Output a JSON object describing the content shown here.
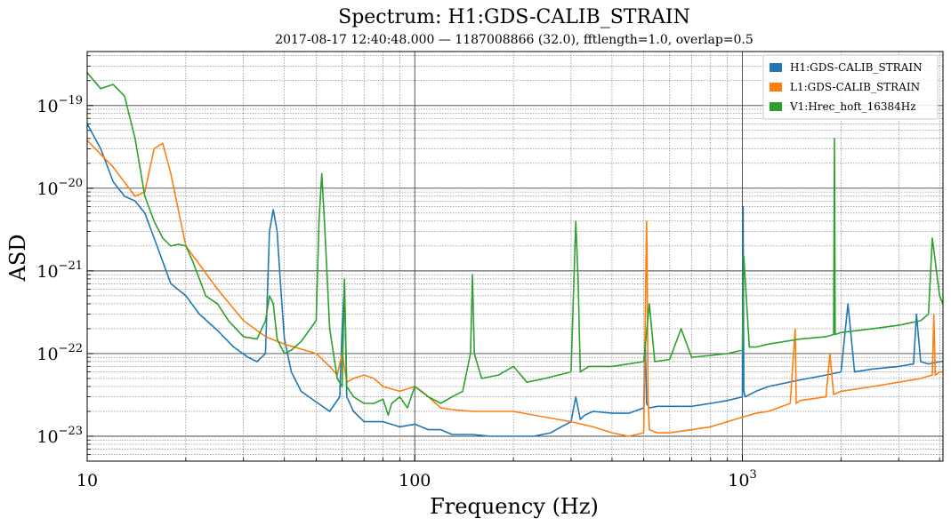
{
  "chart_data": {
    "type": "line",
    "title": "Spectrum: H1:GDS-CALIB_STRAIN",
    "subtitle": "2017-08-17 12:40:48.000 — 1187008866 (32.0), fftlength=1.0, overlap=0.5",
    "xlabel": "Frequency (Hz)",
    "ylabel": "ASD",
    "xscale": "log",
    "yscale": "log",
    "xlim": [
      10,
      4096
    ],
    "ylim": [
      5e-24,
      4.5e-19
    ],
    "grid": true,
    "legend_position": "top-right",
    "x_ticks": [
      {
        "value": 10,
        "label": "10",
        "exp": ""
      },
      {
        "value": 100,
        "label": "100",
        "exp": ""
      },
      {
        "value": 1000,
        "label": "10",
        "exp": "3"
      }
    ],
    "y_ticks": [
      {
        "value": 1e-23,
        "base": "10",
        "exp": "−23"
      },
      {
        "value": 1e-22,
        "base": "10",
        "exp": "−22"
      },
      {
        "value": 1e-21,
        "base": "10",
        "exp": "−21"
      },
      {
        "value": 1e-20,
        "base": "10",
        "exp": "−20"
      },
      {
        "value": 1e-19,
        "base": "10",
        "exp": "−19"
      }
    ],
    "series": [
      {
        "name": "H1:GDS-CALIB_STRAIN",
        "color": "#1f77b4",
        "x": [
          10,
          11,
          12,
          13,
          14,
          15,
          16,
          17,
          18,
          20,
          22,
          25,
          28,
          31,
          33,
          35,
          36,
          37,
          38,
          39,
          40,
          42,
          45,
          50,
          55,
          59,
          60,
          61,
          62,
          65,
          70,
          80,
          90,
          100,
          110,
          120,
          130,
          150,
          170,
          200,
          230,
          260,
          280,
          300,
          310,
          320,
          330,
          350,
          400,
          450,
          500,
          505,
          510,
          520,
          550,
          600,
          700,
          800,
          900,
          1000,
          1005,
          1010,
          1020,
          1100,
          1200,
          1500,
          1800,
          2000,
          2100,
          2200,
          2500,
          3000,
          3330,
          3400,
          3500,
          3700,
          4000,
          4096
        ],
        "y": [
          6e-20,
          3e-20,
          1.2e-20,
          8e-21,
          7e-21,
          5e-21,
          2.5e-21,
          1.3e-21,
          7e-22,
          5e-22,
          3e-22,
          1.9e-22,
          1.2e-22,
          9e-23,
          8e-23,
          1e-22,
          3e-21,
          5.5e-21,
          3e-21,
          6e-22,
          1.5e-22,
          6e-23,
          3.5e-23,
          2.6e-23,
          2e-23,
          3e-23,
          2e-22,
          7e-22,
          3e-23,
          2e-23,
          1.5e-23,
          1.5e-23,
          1.3e-23,
          1.4e-23,
          1.2e-23,
          1.2e-23,
          1.05e-23,
          1.05e-23,
          1e-23,
          1e-23,
          1e-23,
          1.1e-23,
          1.3e-23,
          1.5e-23,
          3e-23,
          1.6e-23,
          1.8e-23,
          2e-23,
          1.9e-23,
          1.9e-23,
          2.2e-23,
          1.5e-22,
          2.5e-23,
          2.2e-23,
          2.3e-23,
          2.3e-23,
          2.3e-23,
          2.5e-23,
          2.7e-23,
          3e-23,
          6e-21,
          3.5e-23,
          3e-23,
          3.5e-23,
          4e-23,
          4.8e-23,
          5.5e-23,
          6e-23,
          4e-22,
          6e-23,
          6.5e-23,
          7e-23,
          7.5e-23,
          3e-22,
          8e-23,
          7.5e-23,
          8e-23,
          8e-23
        ]
      },
      {
        "name": "L1:GDS-CALIB_STRAIN",
        "color": "#ff7f0e",
        "x": [
          10,
          12,
          14,
          15,
          16,
          17,
          18,
          20,
          22,
          25,
          30,
          35,
          40,
          50,
          55,
          58,
          60,
          62,
          65,
          70,
          75,
          80,
          90,
          100,
          105,
          110,
          120,
          130,
          150,
          200,
          250,
          300,
          350,
          400,
          450,
          500,
          510,
          512,
          515,
          520,
          550,
          600,
          700,
          800,
          900,
          1000,
          1100,
          1200,
          1400,
          1450,
          1460,
          1500,
          1800,
          1850,
          1900,
          2000,
          2500,
          3000,
          3500,
          3800,
          3840,
          3880,
          4000,
          4096
        ],
        "y": [
          3.8e-20,
          1.8e-20,
          8e-21,
          9e-21,
          3e-20,
          3.5e-20,
          1.5e-20,
          2e-21,
          1.2e-21,
          6e-22,
          2.5e-22,
          1.6e-22,
          1.3e-22,
          1e-22,
          7e-23,
          5.5e-23,
          1e-22,
          4.5e-23,
          5e-23,
          5.5e-23,
          5e-23,
          4e-23,
          3.5e-23,
          4e-23,
          3.5e-23,
          3e-23,
          2.2e-23,
          2.1e-23,
          2e-23,
          2e-23,
          1.7e-23,
          1.5e-23,
          1.3e-23,
          1.1e-23,
          1e-23,
          1.1e-23,
          4e-21,
          1.5e-21,
          3e-23,
          1.2e-23,
          1.1e-23,
          1.1e-23,
          1.2e-23,
          1.3e-23,
          1.5e-23,
          1.7e-23,
          1.9e-23,
          2e-23,
          2.5e-23,
          2e-22,
          2.5e-23,
          2.7e-23,
          3e-23,
          1e-22,
          3.2e-23,
          3.5e-23,
          4e-23,
          4.5e-23,
          5e-23,
          5.5e-23,
          3e-22,
          5.5e-23,
          6e-23,
          6e-23
        ]
      },
      {
        "name": "V1:Hrec_hoft_16384Hz",
        "color": "#2ca02c",
        "x": [
          10,
          11,
          12,
          13,
          14,
          15,
          16,
          17,
          18,
          19,
          20,
          21,
          22,
          23,
          25,
          27,
          30,
          33,
          35,
          36,
          37,
          38,
          40,
          42,
          45,
          48,
          50,
          51,
          52,
          53,
          55,
          58,
          60,
          61,
          62,
          65,
          70,
          75,
          80,
          83,
          85,
          90,
          95,
          100,
          110,
          120,
          130,
          140,
          148,
          150,
          152,
          160,
          180,
          200,
          220,
          250,
          300,
          310,
          315,
          320,
          330,
          340,
          400,
          450,
          500,
          520,
          540,
          600,
          650,
          700,
          800,
          900,
          1000,
          1010,
          1050,
          1100,
          1200,
          1500,
          1800,
          1900,
          1910,
          1920,
          2000,
          2500,
          3000,
          3500,
          3700,
          3800,
          4000,
          4096
        ],
        "y": [
          2.5e-19,
          1.6e-19,
          1.8e-19,
          1.3e-19,
          4e-20,
          8e-21,
          4e-21,
          2.5e-21,
          2e-21,
          2.1e-21,
          2e-21,
          1.3e-21,
          8e-22,
          5e-22,
          4e-22,
          2.5e-22,
          1.6e-22,
          1.5e-22,
          2.5e-22,
          5e-22,
          4e-22,
          1.5e-22,
          1e-22,
          1.1e-22,
          1.4e-22,
          2e-22,
          2.5e-22,
          4e-21,
          1.5e-20,
          4e-21,
          2e-22,
          5e-23,
          4e-23,
          8e-22,
          4e-23,
          3e-23,
          2.5e-23,
          2.5e-23,
          2.8e-23,
          1.8e-23,
          2.5e-23,
          3e-23,
          2.2e-23,
          4e-23,
          3e-23,
          2.5e-23,
          3e-23,
          3.5e-23,
          1e-22,
          9e-22,
          1e-22,
          5e-23,
          5.5e-23,
          7e-23,
          4.5e-23,
          5e-23,
          6e-23,
          4e-21,
          8e-22,
          6e-23,
          6.5e-23,
          7e-23,
          7e-23,
          7.5e-23,
          8e-23,
          4e-22,
          8e-23,
          8.5e-23,
          2e-22,
          9e-23,
          9.5e-23,
          1e-22,
          1.1e-22,
          1.5e-21,
          1.2e-22,
          1.2e-22,
          1.3e-22,
          1.5e-22,
          1.6e-22,
          1.7e-22,
          4e-20,
          1.7e-22,
          1.8e-22,
          2e-22,
          2.2e-22,
          2.5e-22,
          3e-22,
          2.5e-21,
          5e-22,
          4e-22
        ]
      }
    ]
  }
}
